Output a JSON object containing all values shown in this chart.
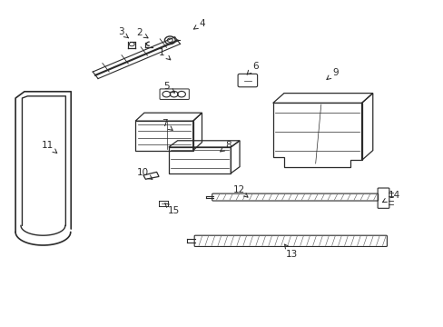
{
  "bg_color": "#ffffff",
  "line_color": "#2a2a2a",
  "parts_labels": {
    "1": [
      0.39,
      0.81,
      0.365,
      0.84
    ],
    "2": [
      0.34,
      0.878,
      0.315,
      0.9
    ],
    "3": [
      0.295,
      0.878,
      0.272,
      0.902
    ],
    "4": [
      0.43,
      0.905,
      0.455,
      0.928
    ],
    "5": [
      0.4,
      0.71,
      0.375,
      0.735
    ],
    "6": [
      0.555,
      0.77,
      0.575,
      0.798
    ],
    "7": [
      0.395,
      0.595,
      0.37,
      0.622
    ],
    "8": [
      0.49,
      0.53,
      0.515,
      0.555
    ],
    "9": [
      0.73,
      0.75,
      0.755,
      0.778
    ],
    "10": [
      0.345,
      0.45,
      0.322,
      0.472
    ],
    "11": [
      0.13,
      0.53,
      0.108,
      0.555
    ],
    "12": [
      0.56,
      0.395,
      0.538,
      0.42
    ],
    "13": [
      0.64,
      0.255,
      0.658,
      0.222
    ],
    "14": [
      0.86,
      0.38,
      0.888,
      0.402
    ],
    "15": [
      0.37,
      0.38,
      0.392,
      0.355
    ]
  }
}
